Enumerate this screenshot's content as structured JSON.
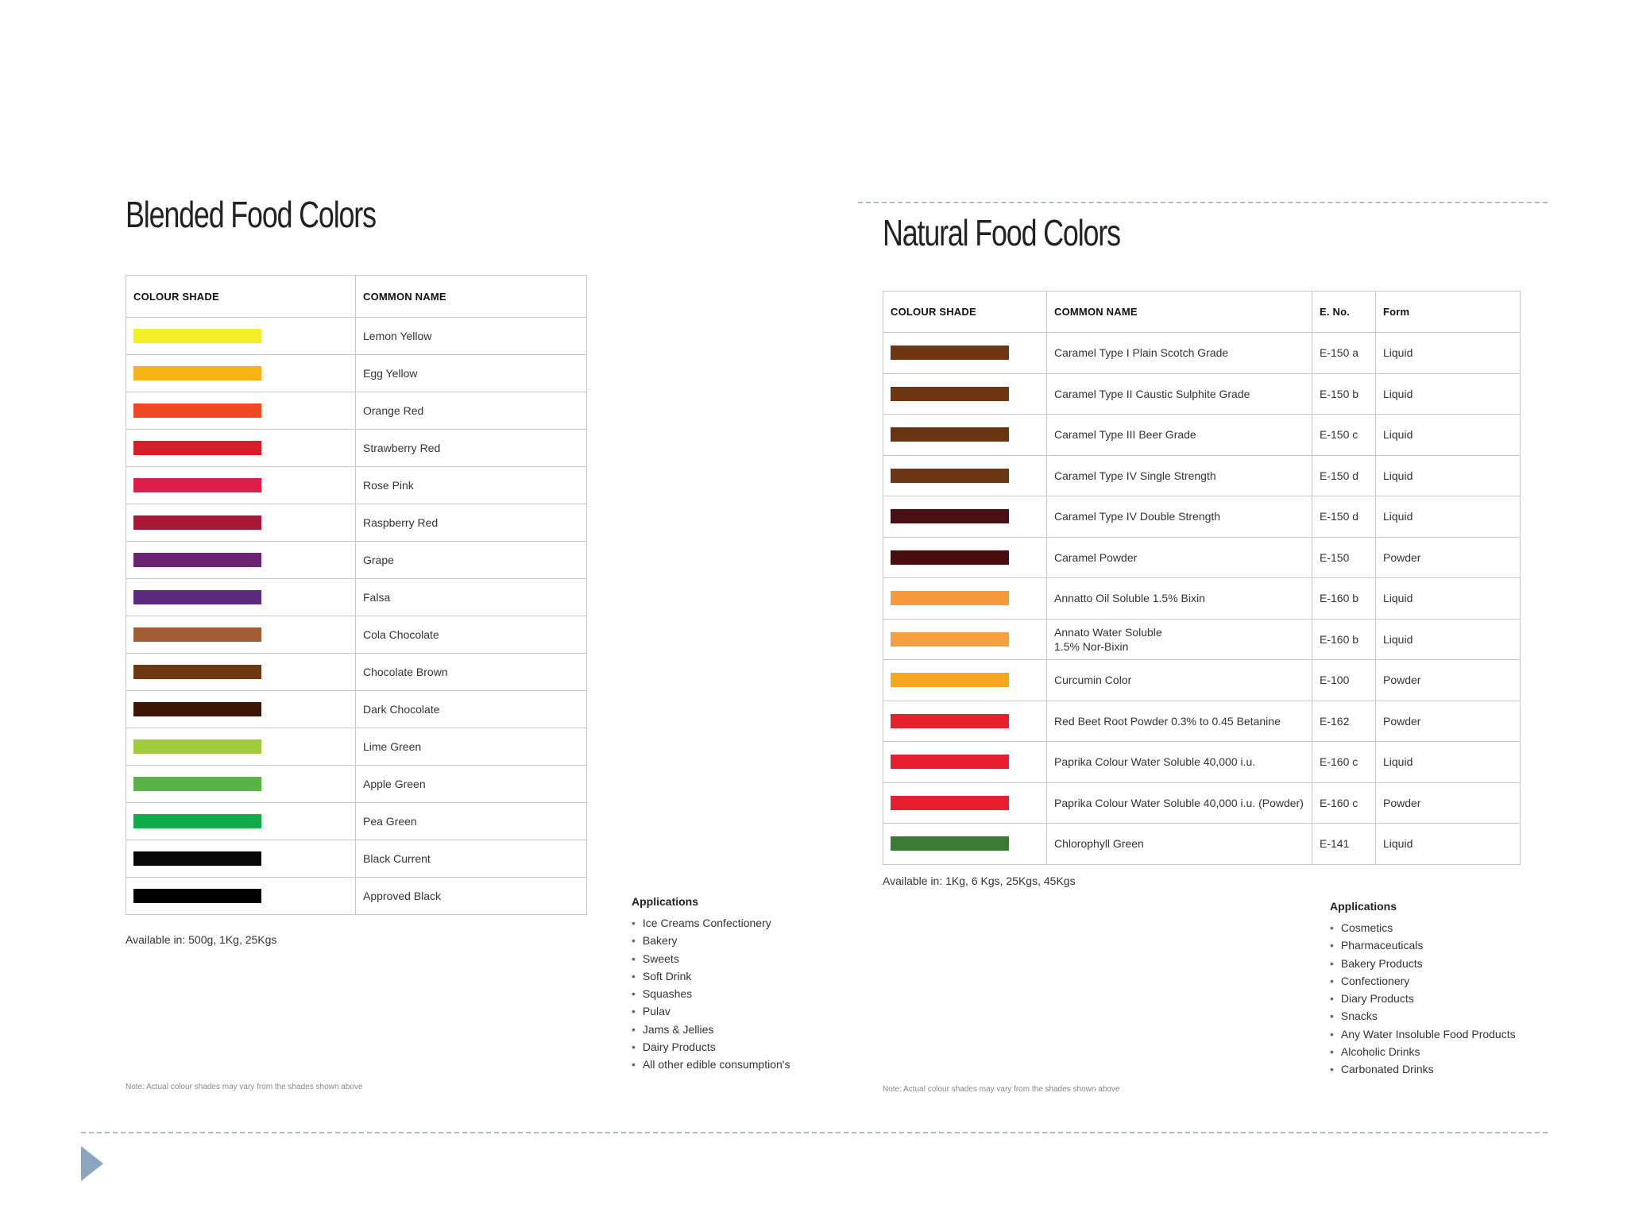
{
  "blended": {
    "title": "Blended Food Colors",
    "headers": {
      "shade": "COLOUR SHADE",
      "name": "COMMON NAME"
    },
    "rows": [
      {
        "color": "#f5ef2a",
        "name": "Lemon Yellow"
      },
      {
        "color": "#f8b117",
        "name": "Egg Yellow"
      },
      {
        "color": "#ef4a26",
        "name": "Orange Red"
      },
      {
        "color": "#d71f2b",
        "name": "Strawberry Red"
      },
      {
        "color": "#dc1e4a",
        "name": "Rose Pink"
      },
      {
        "color": "#a51b35",
        "name": "Raspberry Red"
      },
      {
        "color": "#6b2472",
        "name": "Grape"
      },
      {
        "color": "#5c2b7d",
        "name": "Falsa"
      },
      {
        "color": "#a25c36",
        "name": "Cola Chocolate"
      },
      {
        "color": "#6d3813",
        "name": "Chocolate Brown"
      },
      {
        "color": "#3c1607",
        "name": "Dark Chocolate"
      },
      {
        "color": "#9fcb3d",
        "name": "Lime Green"
      },
      {
        "color": "#59b447",
        "name": "Apple Green"
      },
      {
        "color": "#13aa48",
        "name": "Pea Green"
      },
      {
        "color": "#080808",
        "name": "Black Current"
      },
      {
        "color": "#000000",
        "name": "Approved Black"
      }
    ],
    "available": "Available in: 500g, 1Kg, 25Kgs",
    "note": "Note: Actual colour shades may vary from the shades shown above",
    "applications": {
      "title": "Applications",
      "items": [
        "Ice Creams Confectionery",
        "Bakery",
        "Sweets",
        "Soft Drink",
        "Squashes",
        "Pulav",
        "Jams & Jellies",
        "Dairy Products",
        "All other edible consumption's"
      ]
    }
  },
  "natural": {
    "title": "Natural Food Colors",
    "headers": {
      "shade": "COLOUR SHADE",
      "name": "COMMON NAME",
      "eno": "E. No.",
      "form": "Form"
    },
    "rows": [
      {
        "color": "#6e3612",
        "name": "Caramel Type I Plain Scotch Grade",
        "eno": "E-150 a",
        "form": "Liquid"
      },
      {
        "color": "#6e3612",
        "name": "Caramel Type II Caustic Sulphite Grade",
        "eno": "E-150 b",
        "form": "Liquid"
      },
      {
        "color": "#6a3411",
        "name": "Caramel Type III Beer Grade",
        "eno": "E-150 c",
        "form": "Liquid"
      },
      {
        "color": "#6c3714",
        "name": "Caramel Type IV Single Strength",
        "eno": "E-150 d",
        "form": "Liquid"
      },
      {
        "color": "#4a0f14",
        "name": "Caramel Type IV Double Strength",
        "eno": "E-150 d",
        "form": "Liquid"
      },
      {
        "color": "#4a0d0d",
        "name": "Caramel Powder",
        "eno": "E-150",
        "form": "Powder"
      },
      {
        "color": "#f79a3c",
        "name": "Annatto Oil Soluble 1.5% Bixin",
        "eno": "E-160 b",
        "form": "Liquid"
      },
      {
        "color": "#f7a040",
        "name": "Annato Water Soluble\n1.5% Nor-Bixin",
        "eno": "E-160 b",
        "form": "Liquid"
      },
      {
        "color": "#f5a81f",
        "name": "Curcumin Color",
        "eno": "E-100",
        "form": "Powder"
      },
      {
        "color": "#e8202d",
        "name": "Red Beet Root Powder 0.3% to 0.45 Betanine",
        "eno": "E-162",
        "form": "Powder"
      },
      {
        "color": "#e81d2e",
        "name": "Paprika Colour Water Soluble 40,000 i.u.",
        "eno": "E-160 c",
        "form": "Liquid"
      },
      {
        "color": "#e81d2e",
        "name": "Paprika Colour Water Soluble 40,000 i.u. (Powder)",
        "eno": "E-160 c",
        "form": "Powder"
      },
      {
        "color": "#3b7a32",
        "name": "Chlorophyll Green",
        "eno": "E-141",
        "form": "Liquid"
      }
    ],
    "available": "Available in: 1Kg, 6 Kgs, 25Kgs, 45Kgs",
    "note": "Note: Actual colour shades may vary from the shades shown above",
    "applications": {
      "title": "Applications",
      "items": [
        "Cosmetics",
        "Pharmaceuticals",
        "Bakery Products",
        "Confectionery",
        "Diary Products",
        "Snacks",
        "Any Water Insoluble Food Products",
        "Alcoholic Drinks",
        "Carbonated Drinks"
      ]
    }
  },
  "icons": {
    "slide_marker": "play-triangle-icon"
  }
}
